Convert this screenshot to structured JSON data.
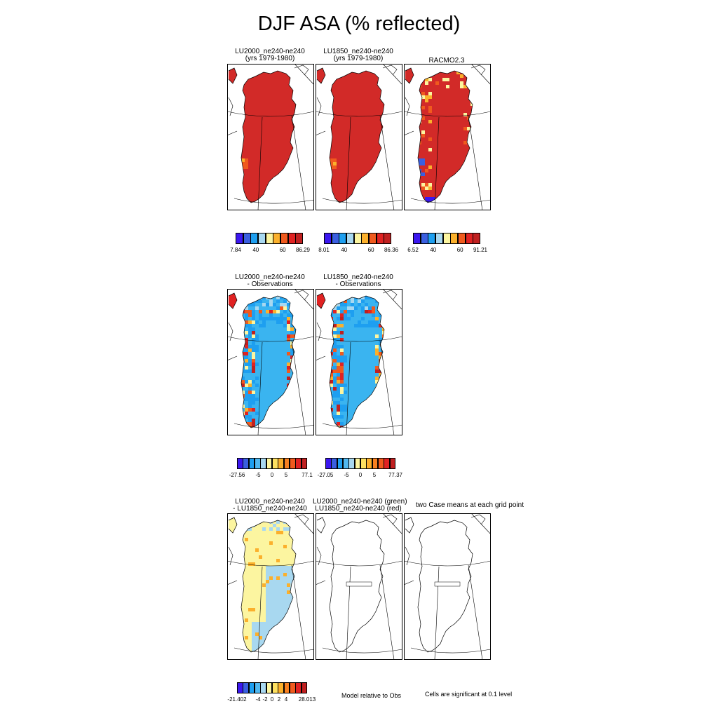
{
  "figure_title": "DJF ASA (% reflected)",
  "palette_abs": [
    "#3b17f0",
    "#3a5fe0",
    "#1e9ff0",
    "#a8d8f0",
    "#fcf5a0",
    "#fbb02c",
    "#f05a1e",
    "#e02222",
    "#c02020"
  ],
  "palette_diff": [
    "#3b17f0",
    "#3a5fe0",
    "#1e9ff0",
    "#50b8f0",
    "#a8d8f0",
    "#fcf5a0",
    "#fde060",
    "#fbb02c",
    "#f88020",
    "#f05a1e",
    "#e02222",
    "#c02020"
  ],
  "rows": [
    {
      "panels": [
        {
          "title_line1": "LU2000_ne240-ne240",
          "title_line2": "(yrs 1979-1980)",
          "fill": "abs_model"
        },
        {
          "title_line1": "LU1850_ne240-ne240",
          "title_line2": "(yrs 1979-1980)",
          "fill": "abs_model"
        },
        {
          "title_line1": "RACMO2.3",
          "title_line2": "",
          "fill": "abs_obs"
        }
      ],
      "colorbars": [
        {
          "labels": [
            "7.84",
            "40",
            "60",
            "86.29"
          ]
        },
        {
          "labels": [
            "8.01",
            "40",
            "60",
            "86.36"
          ]
        },
        {
          "labels": [
            "6.52",
            "40",
            "60",
            "91.21"
          ]
        }
      ]
    },
    {
      "panels": [
        {
          "title_line1": "LU2000_ne240-ne240",
          "title_line2": "- Observations",
          "fill": "diff_obs"
        },
        {
          "title_line1": "LU1850_ne240-ne240",
          "title_line2": "- Observations",
          "fill": "diff_obs"
        }
      ],
      "colorbars": [
        {
          "labels": [
            "-27.56",
            "-5",
            "0",
            "5",
            "77.1"
          ]
        },
        {
          "labels": [
            "-27.05",
            "-5",
            "0",
            "5",
            "77.37"
          ]
        }
      ]
    },
    {
      "panels": [
        {
          "title_line1": "LU2000_ne240-ne240",
          "title_line2": "- LU1850_ne240-ne240",
          "fill": "diff_case"
        },
        {
          "title_line1": "LU2000_ne240-ne240 (green)",
          "title_line2": "LU1850_ne240-ne240 (red)",
          "fill": "none"
        },
        {
          "title_line1": "two Case means at each grid point",
          "title_line2": "",
          "fill": "none"
        }
      ],
      "colorbars": [
        {
          "labels": [
            "-21.402",
            "-4",
            "-2",
            "0",
            "2",
            "4",
            "28.013"
          ]
        }
      ]
    }
  ],
  "notes": {
    "model_relative": "Model relative to Obs",
    "significance": "Cells are significant at 0.1 level"
  }
}
